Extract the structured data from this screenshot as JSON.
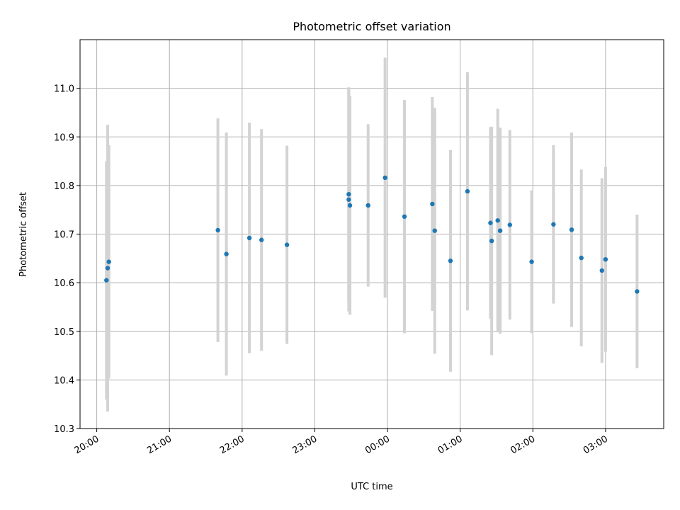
{
  "chart_data": {
    "type": "scatter",
    "title": "Photometric offset variation",
    "xlabel": "UTC time",
    "ylabel": "Photometric offset",
    "x_tick_labels": [
      "20:00",
      "21:00",
      "22:00",
      "23:00",
      "00:00",
      "01:00",
      "02:00",
      "03:00"
    ],
    "x_ticks_hours": [
      20,
      21,
      22,
      23,
      24,
      25,
      26,
      27
    ],
    "xlim_hours": [
      19.77,
      27.8
    ],
    "y_ticks": [
      10.3,
      10.4,
      10.5,
      10.6,
      10.7,
      10.8,
      10.9,
      11.0
    ],
    "y_tick_labels": [
      "10.3",
      "10.4",
      "10.5",
      "10.6",
      "10.7",
      "10.8",
      "10.9",
      "11.0"
    ],
    "ylim": [
      10.3,
      11.1
    ],
    "grid": true,
    "point_color": "#1f77b4",
    "errorbar_color": "#d3d3d3",
    "series": [
      {
        "points": [
          {
            "t": "20:08",
            "y": 10.605,
            "err": 0.245
          },
          {
            "t": "20:09",
            "y": 10.63,
            "err": 0.295
          },
          {
            "t": "20:10",
            "y": 10.643,
            "err": 0.24
          },
          {
            "t": "21:40",
            "y": 10.708,
            "err": 0.23
          },
          {
            "t": "21:47",
            "y": 10.659,
            "err": 0.25
          },
          {
            "t": "22:06",
            "y": 10.692,
            "err": 0.237
          },
          {
            "t": "22:16",
            "y": 10.688,
            "err": 0.228
          },
          {
            "t": "22:37",
            "y": 10.678,
            "err": 0.204
          },
          {
            "t": "23:28",
            "y": 10.782,
            "err": 0.22
          },
          {
            "t": "23:28",
            "y": 10.771,
            "err": 0.23
          },
          {
            "t": "23:29",
            "y": 10.759,
            "err": 0.225
          },
          {
            "t": "23:44",
            "y": 10.759,
            "err": 0.167
          },
          {
            "t": "23:58",
            "y": 10.816,
            "err": 0.247
          },
          {
            "t": "00:14",
            "y": 10.736,
            "err": 0.24
          },
          {
            "t": "00:37",
            "y": 10.762,
            "err": 0.22
          },
          {
            "t": "00:39",
            "y": 10.707,
            "err": 0.253
          },
          {
            "t": "00:52",
            "y": 10.645,
            "err": 0.228
          },
          {
            "t": "01:06",
            "y": 10.788,
            "err": 0.245
          },
          {
            "t": "01:25",
            "y": 10.723,
            "err": 0.197
          },
          {
            "t": "01:26",
            "y": 10.686,
            "err": 0.235
          },
          {
            "t": "01:31",
            "y": 10.728,
            "err": 0.23
          },
          {
            "t": "01:33",
            "y": 10.707,
            "err": 0.212
          },
          {
            "t": "01:41",
            "y": 10.719,
            "err": 0.195
          },
          {
            "t": "01:59",
            "y": 10.643,
            "err": 0.147
          },
          {
            "t": "02:17",
            "y": 10.72,
            "err": 0.163
          },
          {
            "t": "02:32",
            "y": 10.709,
            "err": 0.2
          },
          {
            "t": "02:40",
            "y": 10.651,
            "err": 0.182
          },
          {
            "t": "02:57",
            "y": 10.625,
            "err": 0.19
          },
          {
            "t": "03:00",
            "y": 10.648,
            "err": 0.19
          },
          {
            "t": "03:26",
            "y": 10.582,
            "err": 0.158
          }
        ]
      }
    ]
  }
}
